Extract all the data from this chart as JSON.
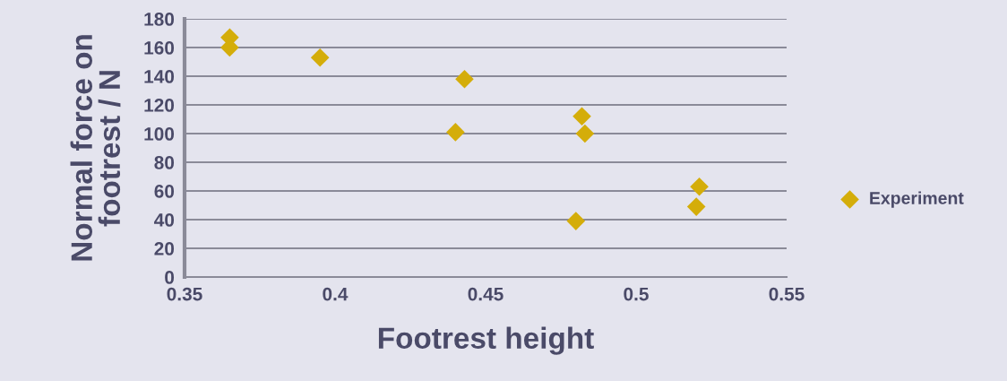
{
  "chart_data": {
    "type": "scatter",
    "xlabel": "Footrest height",
    "ylabel": "Normal force on\nfootrest / N",
    "series": [
      {
        "name": "Experiment",
        "color": "#d4ad0a",
        "x": [
          0.365,
          0.365,
          0.395,
          0.443,
          0.44,
          0.482,
          0.483,
          0.48,
          0.521,
          0.52
        ],
        "values": [
          167,
          160,
          153,
          138,
          101,
          112,
          100,
          39,
          63,
          49
        ]
      }
    ],
    "xlim": [
      0.35,
      0.55
    ],
    "xticks": [
      0.35,
      0.4,
      0.45,
      0.5,
      0.55
    ],
    "ylim": [
      0,
      180
    ],
    "yticks": [
      0,
      20,
      40,
      60,
      80,
      100,
      120,
      140,
      160,
      180
    ],
    "grid": "y",
    "legend": "right",
    "marker": "diamond"
  }
}
